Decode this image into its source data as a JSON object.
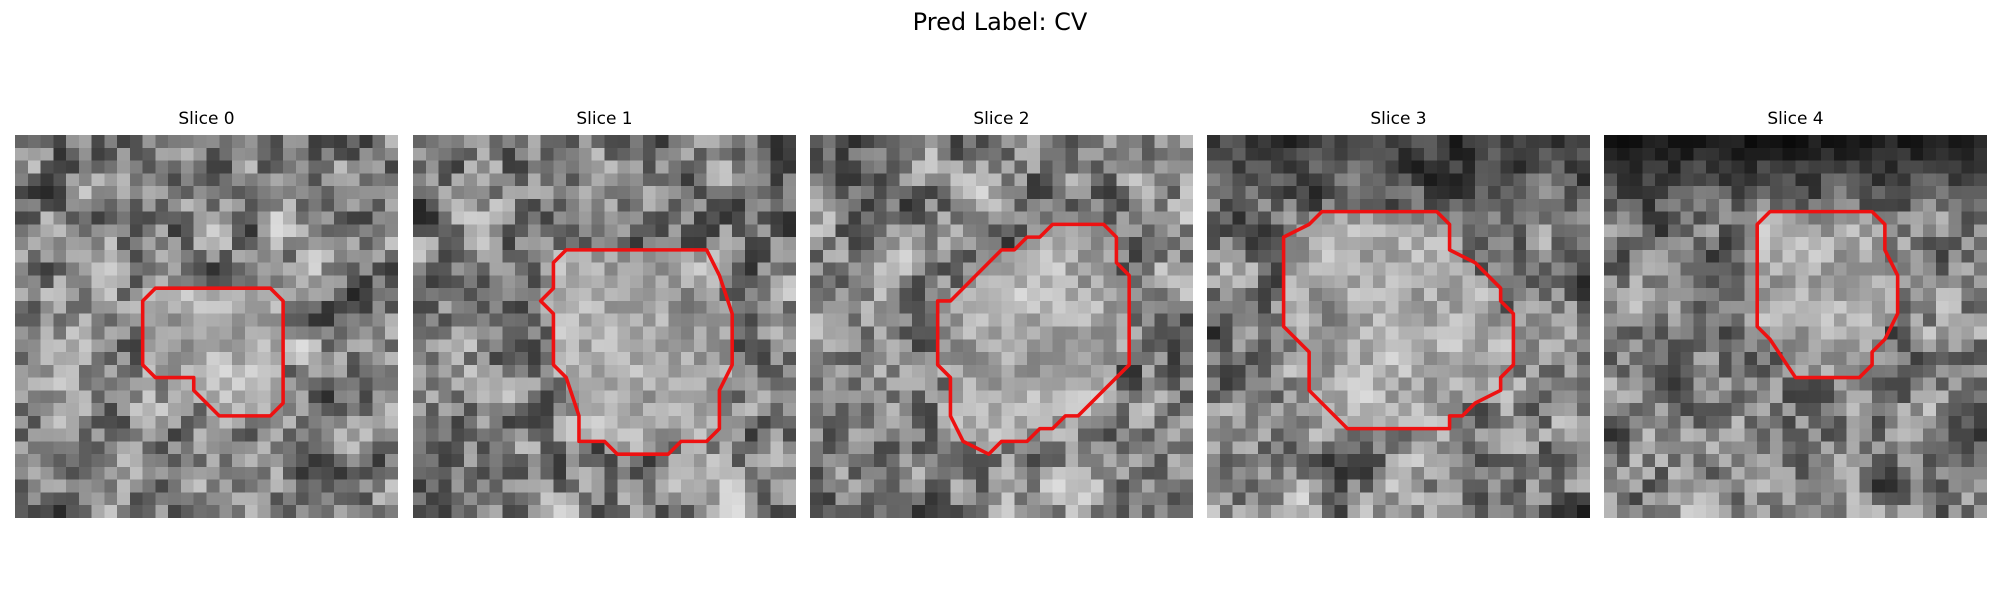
{
  "figure": {
    "suptitle": "Pred Label: CV"
  },
  "panels": [
    {
      "title": "Slice 0",
      "seed": 11,
      "dark_top": 0.0,
      "contour": [
        [
          10,
          13
        ],
        [
          11,
          12
        ],
        [
          20,
          12
        ],
        [
          21,
          13
        ],
        [
          21,
          21
        ],
        [
          20,
          22
        ],
        [
          16,
          22
        ],
        [
          14,
          20
        ],
        [
          14,
          19
        ],
        [
          11,
          19
        ],
        [
          10,
          18
        ]
      ]
    },
    {
      "title": "Slice 1",
      "seed": 23,
      "dark_top": 0.0,
      "contour": [
        [
          11,
          10
        ],
        [
          12,
          9
        ],
        [
          23,
          9
        ],
        [
          24,
          11
        ],
        [
          25,
          14
        ],
        [
          25,
          18
        ],
        [
          24,
          20
        ],
        [
          24,
          23
        ],
        [
          23,
          24
        ],
        [
          21,
          24
        ],
        [
          20,
          25
        ],
        [
          16,
          25
        ],
        [
          15,
          24
        ],
        [
          13,
          24
        ],
        [
          13,
          22
        ],
        [
          12,
          19
        ],
        [
          11,
          18
        ],
        [
          11,
          14
        ],
        [
          10,
          13
        ],
        [
          11,
          12
        ]
      ]
    },
    {
      "title": "Slice 2",
      "seed": 37,
      "dark_top": 0.0,
      "contour": [
        [
          11,
          13
        ],
        [
          14,
          10
        ],
        [
          15,
          9
        ],
        [
          16,
          9
        ],
        [
          17,
          8
        ],
        [
          18,
          8
        ],
        [
          19,
          7
        ],
        [
          23,
          7
        ],
        [
          24,
          8
        ],
        [
          24,
          10
        ],
        [
          25,
          11
        ],
        [
          25,
          18
        ],
        [
          22,
          21
        ],
        [
          21,
          22
        ],
        [
          20,
          22
        ],
        [
          19,
          23
        ],
        [
          18,
          23
        ],
        [
          17,
          24
        ],
        [
          15,
          24
        ],
        [
          14,
          25
        ],
        [
          12,
          24
        ],
        [
          11,
          22
        ],
        [
          11,
          19
        ],
        [
          10,
          18
        ],
        [
          10,
          13
        ]
      ]
    },
    {
      "title": "Slice 3",
      "seed": 41,
      "dark_top": 0.55,
      "contour": [
        [
          6,
          8
        ],
        [
          8,
          7
        ],
        [
          9,
          6
        ],
        [
          18,
          6
        ],
        [
          19,
          7
        ],
        [
          19,
          9
        ],
        [
          21,
          10
        ],
        [
          23,
          12
        ],
        [
          23,
          13
        ],
        [
          24,
          14
        ],
        [
          24,
          18
        ],
        [
          23,
          19
        ],
        [
          23,
          20
        ],
        [
          21,
          21
        ],
        [
          20,
          22
        ],
        [
          19,
          22
        ],
        [
          19,
          23
        ],
        [
          11,
          23
        ],
        [
          8,
          20
        ],
        [
          8,
          17
        ],
        [
          7,
          16
        ],
        [
          6,
          15
        ],
        [
          6,
          13
        ],
        [
          6,
          11
        ],
        [
          6,
          9
        ]
      ]
    },
    {
      "title": "Slice 4",
      "seed": 53,
      "dark_top": 0.75,
      "contour": [
        [
          12,
          7
        ],
        [
          13,
          6
        ],
        [
          21,
          6
        ],
        [
          22,
          7
        ],
        [
          22,
          9
        ],
        [
          23,
          11
        ],
        [
          23,
          14
        ],
        [
          22,
          16
        ],
        [
          21,
          17
        ],
        [
          21,
          18
        ],
        [
          20,
          19
        ],
        [
          15,
          19
        ],
        [
          13,
          16
        ],
        [
          12,
          15
        ],
        [
          12,
          8
        ]
      ]
    }
  ],
  "colors": {
    "contour": "#ee1111",
    "background": "#ffffff"
  }
}
